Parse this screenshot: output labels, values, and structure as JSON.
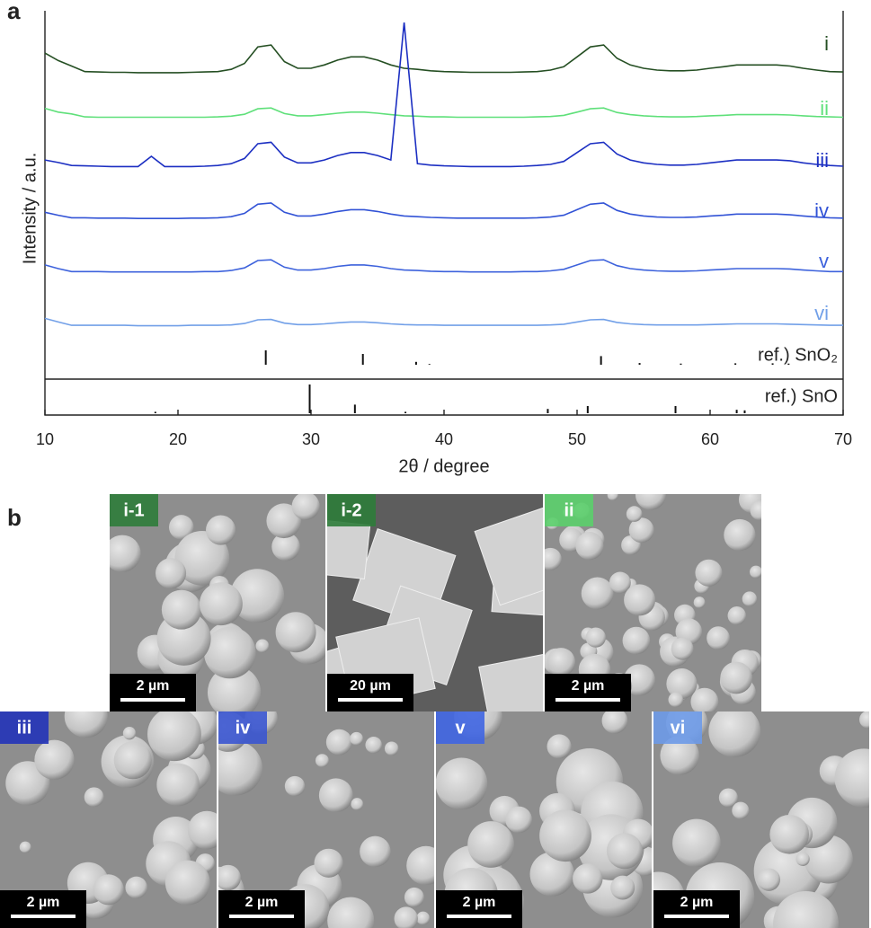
{
  "panel_labels": [
    "a",
    "b"
  ],
  "chart_data": [
    {
      "type": "line",
      "y_label": "Intensity / a.u.",
      "x": [
        10,
        11,
        12,
        13,
        14,
        15,
        16,
        17,
        18,
        19,
        20,
        21,
        22,
        23,
        24,
        25,
        26,
        27,
        28,
        29,
        30,
        31,
        32,
        33,
        34,
        35,
        36,
        37,
        38,
        39,
        40,
        41,
        42,
        43,
        44,
        45,
        46,
        47,
        48,
        49,
        50,
        51,
        52,
        53,
        54,
        55,
        56,
        57,
        58,
        59,
        60,
        61,
        62,
        63,
        64,
        65,
        66,
        67,
        68,
        69,
        70
      ],
      "xlim": [
        10,
        70
      ],
      "ylim": [
        0,
        100
      ],
      "series": [
        {
          "name": "i",
          "color": "#254f23",
          "values": [
            88.5,
            86.5,
            85.0,
            83.5,
            83.4,
            83.3,
            83.3,
            83.2,
            83.2,
            83.2,
            83.2,
            83.3,
            83.4,
            83.5,
            84.1,
            85.7,
            90.2,
            90.7,
            86.2,
            84.4,
            84.4,
            85.3,
            86.6,
            87.5,
            87.5,
            86.6,
            85.3,
            84.4,
            84.1,
            83.7,
            83.5,
            83.4,
            83.3,
            83.3,
            83.3,
            83.3,
            83.4,
            83.5,
            83.9,
            84.8,
            87.5,
            90.2,
            90.7,
            87.1,
            85.3,
            84.4,
            83.9,
            83.7,
            83.7,
            83.9,
            84.4,
            84.8,
            85.3,
            85.3,
            85.3,
            85.3,
            85.0,
            84.4,
            83.9,
            83.5,
            83.4
          ]
        },
        {
          "name": "ii",
          "color": "#5fe07a",
          "values": [
            73.5,
            72.5,
            72.0,
            71.2,
            71.1,
            71.1,
            71.1,
            71.1,
            71.1,
            71.1,
            71.1,
            71.1,
            71.1,
            71.2,
            71.4,
            71.9,
            73.4,
            73.6,
            72.1,
            71.5,
            71.5,
            71.8,
            72.2,
            72.5,
            72.5,
            72.2,
            71.8,
            71.5,
            71.4,
            71.2,
            71.2,
            71.1,
            71.1,
            71.1,
            71.1,
            71.1,
            71.1,
            71.2,
            71.3,
            71.6,
            72.5,
            73.4,
            73.6,
            72.4,
            71.8,
            71.5,
            71.3,
            71.2,
            71.2,
            71.3,
            71.5,
            71.6,
            71.8,
            71.8,
            71.8,
            71.8,
            71.7,
            71.5,
            71.3,
            71.2,
            71.1
          ]
        },
        {
          "name": "iii",
          "color": "#1c2fc2",
          "values": [
            59.5,
            58.8,
            58.0,
            57.9,
            57.8,
            57.7,
            57.7,
            57.7,
            60.5,
            57.7,
            57.7,
            57.7,
            57.8,
            58.0,
            58.5,
            59.9,
            63.9,
            64.3,
            60.3,
            58.7,
            58.7,
            59.5,
            60.7,
            61.5,
            61.5,
            60.7,
            59.5,
            96.8,
            58.5,
            58.1,
            57.9,
            57.8,
            57.7,
            57.7,
            57.7,
            57.7,
            57.8,
            58.0,
            58.3,
            59.1,
            61.5,
            63.9,
            64.3,
            61.1,
            59.5,
            58.7,
            58.3,
            58.1,
            58.1,
            58.3,
            58.7,
            59.1,
            59.5,
            59.5,
            59.5,
            59.5,
            59.3,
            58.7,
            58.3,
            58.0,
            57.8
          ]
        },
        {
          "name": "iv",
          "color": "#3253d6",
          "values": [
            45.3,
            44.5,
            43.8,
            43.8,
            43.7,
            43.7,
            43.7,
            43.6,
            43.6,
            43.6,
            43.6,
            43.7,
            43.7,
            43.8,
            44.1,
            45.0,
            47.5,
            47.8,
            45.3,
            44.3,
            44.3,
            44.8,
            45.5,
            46.0,
            46.0,
            45.5,
            44.8,
            44.3,
            44.1,
            43.9,
            43.8,
            43.7,
            43.7,
            43.7,
            43.7,
            43.7,
            43.7,
            43.8,
            44.0,
            44.5,
            46.0,
            47.5,
            47.8,
            45.8,
            44.8,
            44.3,
            44.0,
            43.9,
            43.9,
            44.0,
            44.3,
            44.5,
            44.8,
            44.8,
            44.8,
            44.8,
            44.6,
            44.3,
            44.0,
            43.8,
            43.7
          ]
        },
        {
          "name": "v",
          "color": "#3d62dc",
          "values": [
            31.0,
            30.0,
            29.2,
            29.2,
            29.2,
            29.1,
            29.1,
            29.1,
            29.1,
            29.1,
            29.1,
            29.1,
            29.2,
            29.2,
            29.5,
            30.2,
            32.2,
            32.4,
            30.4,
            29.6,
            29.6,
            30.0,
            30.6,
            31.0,
            31.0,
            30.6,
            30.0,
            29.6,
            29.5,
            29.3,
            29.2,
            29.2,
            29.1,
            29.1,
            29.1,
            29.1,
            29.2,
            29.2,
            29.4,
            29.8,
            31.0,
            32.2,
            32.4,
            30.8,
            30.0,
            29.6,
            29.4,
            29.3,
            29.3,
            29.4,
            29.6,
            29.8,
            30.0,
            30.0,
            30.0,
            30.0,
            29.9,
            29.6,
            29.4,
            29.2,
            29.2
          ]
        },
        {
          "name": "vi",
          "color": "#72a0e8",
          "values": [
            16.5,
            15.5,
            14.6,
            14.6,
            14.6,
            14.6,
            14.6,
            14.5,
            14.5,
            14.5,
            14.5,
            14.6,
            14.6,
            14.6,
            14.7,
            15.1,
            16.1,
            16.2,
            15.2,
            14.8,
            14.8,
            15.0,
            15.3,
            15.5,
            15.5,
            15.3,
            15.0,
            14.8,
            14.7,
            14.7,
            14.6,
            14.6,
            14.6,
            14.6,
            14.6,
            14.6,
            14.6,
            14.6,
            14.7,
            14.9,
            15.5,
            16.1,
            16.2,
            15.4,
            15.0,
            14.8,
            14.7,
            14.7,
            14.7,
            14.7,
            14.8,
            14.9,
            15.0,
            15.0,
            15.0,
            15.0,
            14.9,
            14.8,
            14.7,
            14.6,
            14.6
          ]
        }
      ]
    },
    {
      "type": "stick",
      "name": "ref.) SnO₂",
      "color": "#111111",
      "x": [
        26.6,
        33.9,
        37.9,
        38.9,
        51.8,
        54.7,
        57.8,
        61.9,
        64.7,
        65.9
      ],
      "values": [
        100,
        75,
        20,
        5,
        60,
        12,
        8,
        10,
        10,
        8
      ],
      "xlim": [
        10,
        70
      ],
      "ylim": [
        0,
        100
      ]
    },
    {
      "type": "stick",
      "name": "ref.) SnO",
      "color": "#111111",
      "x": [
        18.3,
        29.9,
        33.3,
        37.1,
        47.8,
        50.8,
        57.4,
        62.0,
        62.6
      ],
      "values": [
        5,
        100,
        30,
        5,
        15,
        25,
        25,
        12,
        10
      ],
      "xlim": [
        10,
        70
      ],
      "ylim": [
        0,
        100
      ],
      "x_label": "2θ / degree",
      "xticks": [
        10,
        20,
        30,
        40,
        50,
        60,
        70
      ]
    }
  ],
  "sem_panels": [
    {
      "label": "i-1",
      "scale_bar": "2 µm"
    },
    {
      "label": "i-2",
      "scale_bar": "20 µm"
    },
    {
      "label": "ii",
      "scale_bar": "2 µm"
    },
    {
      "label": "iii",
      "scale_bar": "2 µm"
    },
    {
      "label": "iv",
      "scale_bar": "2 µm"
    },
    {
      "label": "v",
      "scale_bar": "2 µm"
    },
    {
      "label": "vi",
      "scale_bar": "2 µm"
    }
  ]
}
